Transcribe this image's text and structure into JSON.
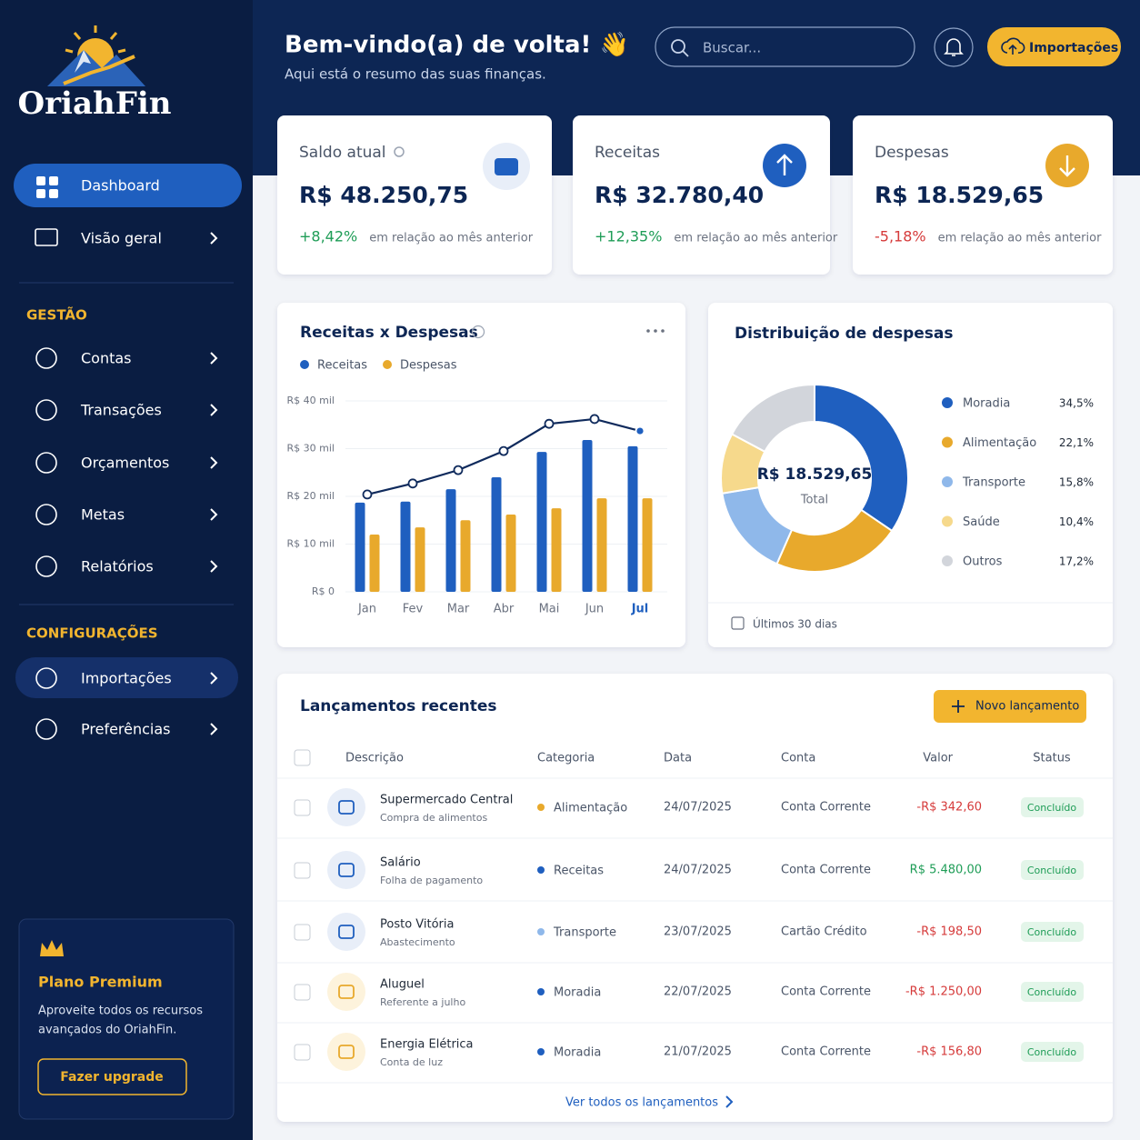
{
  "sidebar": {
    "logo": "OriahFin",
    "nav": [
      "Dashboard",
      "Visão geral"
    ],
    "sections": [
      {
        "title": "GESTÃO",
        "items": [
          "Contas",
          "Transações",
          "Orçamentos",
          "Metas",
          "Relatórios"
        ]
      },
      {
        "title": "CONFIGURAÇÕES",
        "items": [
          "Importações",
          "Preferências"
        ]
      }
    ],
    "premium": {
      "title": "Plano Premium",
      "text": [
        "Aproveite todos os recursos",
        "avançados do OriahFin."
      ],
      "button": "Fazer upgrade"
    }
  },
  "header": {
    "title": "Bem-vindo(a) de volta! 👋",
    "subtitle": "Aqui está o resumo das suas finanças.",
    "search": "Buscar...",
    "button": "Importações"
  },
  "cards": [
    {
      "title": "Saldo atual",
      "value": "R$ 48.250,75",
      "change": "+8,42%",
      "note": "em relação ao mês anterior"
    },
    {
      "title": "Receitas",
      "value": "R$ 32.780,40",
      "change": "+12,35%",
      "note": "em relação ao mês anterior"
    },
    {
      "title": "Despesas",
      "value": "R$ 18.529,65",
      "change": "-5,18%",
      "note": "em relação ao mês anterior"
    }
  ],
  "chart_data": [
    {
      "type": "bar",
      "title": "Receitas x Despesas",
      "categories": [
        "Jan",
        "Fev",
        "Mar",
        "Abr",
        "Mai",
        "Jun",
        "Jul"
      ],
      "series": [
        {
          "name": "Receitas",
          "color": "#1f5fbf",
          "values": [
            18700,
            18900,
            21500,
            24000,
            29300,
            31800,
            30500
          ]
        },
        {
          "name": "Despesas",
          "color": "#e8a92c",
          "values": [
            12000,
            13500,
            15000,
            16200,
            17500,
            19600,
            19600
          ]
        },
        {
          "type": "line",
          "color": "#0f2a5c",
          "values": [
            20400,
            22700,
            25500,
            29500,
            35200,
            36200,
            33700
          ]
        }
      ],
      "ylim": [
        0,
        40000
      ],
      "yticks": [
        {
          "value": 0,
          "label": "R$ 0"
        },
        {
          "value": 10000,
          "label": "R$ 10 mil"
        },
        {
          "value": 20000,
          "label": "R$ 20 mil"
        },
        {
          "value": 30000,
          "label": "R$ 30 mil"
        },
        {
          "value": 40000,
          "label": "R$ 40 mil"
        }
      ],
      "grid": true
    },
    {
      "type": "pie",
      "title": "Distribuição de despesas",
      "categories": [
        "Moradia",
        "Alimentação",
        "Transporte",
        "Saúde",
        "Outros"
      ],
      "values": [
        34.5,
        22.1,
        15.8,
        10.4,
        17.2
      ],
      "value_labels": [
        "34,5%",
        "22,1%",
        "15,8%",
        "10,4%",
        "17,2%"
      ],
      "colors": [
        "#1f5fbf",
        "#e8a92c",
        "#8fb8ea",
        "#f6d98c",
        "#d2d5db"
      ],
      "center_value": "R$ 18.529,65",
      "center_label": "Total",
      "footer": "Últimos 30 dias"
    }
  ],
  "table": {
    "title": "Lançamentos recentes",
    "button": "Novo lançamento",
    "columns": [
      "Descrição",
      "Categoria",
      "Data",
      "Conta",
      "Valor",
      "Status"
    ],
    "rows": [
      {
        "description": "Supermercado Central",
        "detail": "Compra de alimentos",
        "category": "Alimentação",
        "color": "#e8a92c",
        "date": "24/07/2025",
        "account": "Conta Corrente",
        "value": "-R$ 342,60",
        "status": "Concluído"
      },
      {
        "description": "Salário",
        "detail": "Folha de pagamento",
        "category": "Receitas",
        "color": "#1f5fbf",
        "date": "24/07/2025",
        "account": "Conta Corrente",
        "value": "R$ 5.480,00",
        "status": "Concluído"
      },
      {
        "description": "Posto Vitória",
        "detail": "Abastecimento",
        "category": "Transporte",
        "color": "#8fb8ea",
        "date": "23/07/2025",
        "account": "Cartão Crédito",
        "value": "-R$ 198,50",
        "status": "Concluído"
      },
      {
        "description": "Aluguel",
        "detail": "Referente a julho",
        "category": "Moradia",
        "color": "#1f5fbf",
        "date": "22/07/2025",
        "account": "Conta Corrente",
        "value": "-R$ 1.250,00",
        "status": "Concluído"
      },
      {
        "description": "Energia Elétrica",
        "detail": "Conta de luz",
        "category": "Moradia",
        "color": "#1f5fbf",
        "date": "21/07/2025",
        "account": "Conta Corrente",
        "value": "-R$ 156,80",
        "status": "Concluído"
      }
    ],
    "footer": "Ver todos os lançamentos"
  }
}
